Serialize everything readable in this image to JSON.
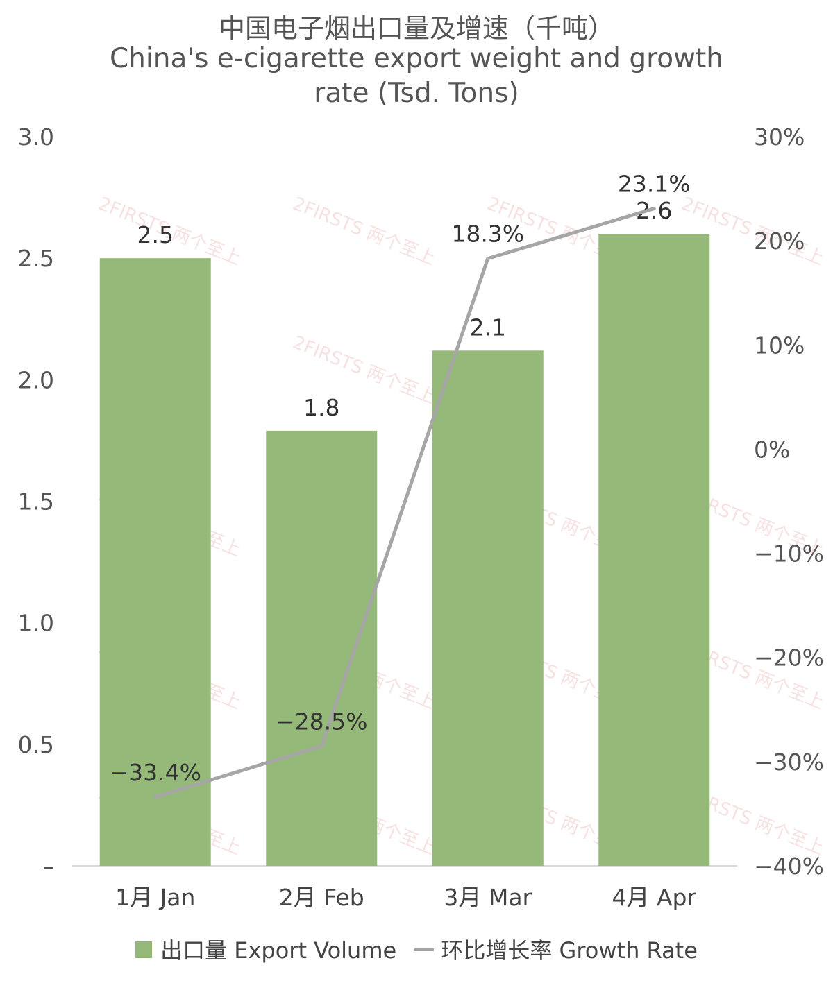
{
  "chart_data": {
    "type": "bar",
    "title": "中国电子烟出口量及增速（千吨）",
    "subtitle_lines": [
      "China's e-cigarette export weight and growth",
      "rate (Tsd. Tons)"
    ],
    "categories": [
      "1月 Jan",
      "2月 Feb",
      "3月 Mar",
      "4月 Apr"
    ],
    "series": [
      {
        "name": "出口量 Export Volume",
        "type": "bar",
        "axis": "left",
        "color": "#95b978",
        "values": [
          2.5,
          1.79,
          2.12,
          2.6
        ],
        "labels": [
          "2.5",
          "1.8",
          "2.1",
          "2.6"
        ]
      },
      {
        "name": "环比增长率 Growth Rate",
        "type": "line",
        "axis": "right",
        "color": "#a6a6a6",
        "values": [
          -33.4,
          -28.5,
          18.3,
          23.1
        ],
        "labels": [
          "−33.4%",
          "−28.5%",
          "18.3%",
          "23.1%"
        ]
      }
    ],
    "y_left": {
      "range": [
        0,
        3.0
      ],
      "ticks": [
        "–",
        "0.5",
        "1.0",
        "1.5",
        "2.0",
        "2.5",
        "3.0"
      ]
    },
    "y_right": {
      "range": [
        -40,
        30
      ],
      "ticks": [
        "−40%",
        "−30%",
        "−20%",
        "−10%",
        "0%",
        "10%",
        "20%",
        "30%"
      ]
    },
    "grid": false,
    "legend": "bottom"
  },
  "watermark": "2FIRSTS 两个至上"
}
